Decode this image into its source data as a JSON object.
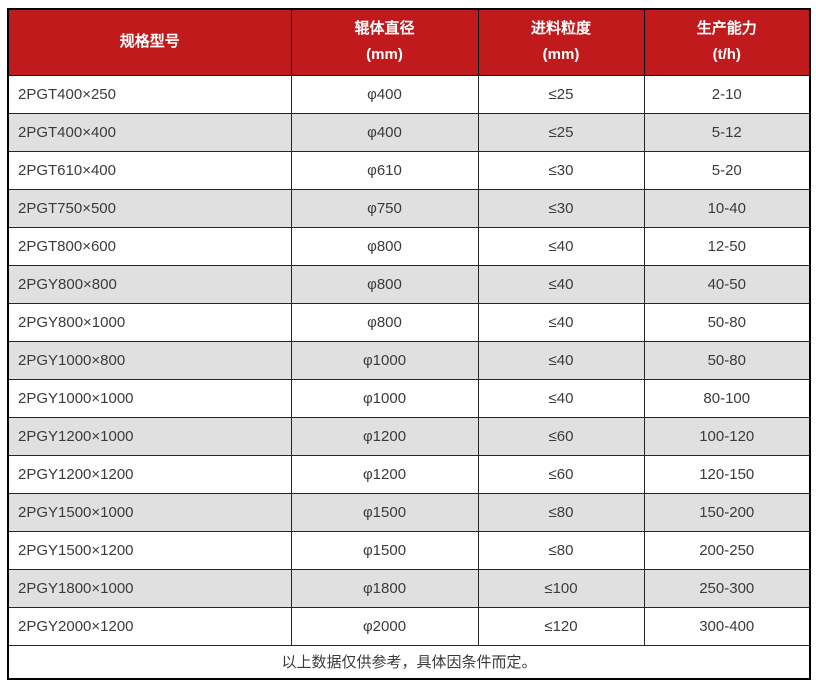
{
  "table": {
    "columns": [
      {
        "line1": "规格型号",
        "line2": ""
      },
      {
        "line1": "辊体直径",
        "line2": "(mm)"
      },
      {
        "line1": "进料粒度",
        "line2": "(mm)"
      },
      {
        "line1": "生产能力",
        "line2": "(t/h)"
      }
    ],
    "rows": [
      [
        "2PGT400×250",
        "φ400",
        "≤25",
        "2-10"
      ],
      [
        "2PGT400×400",
        "φ400",
        "≤25",
        "5-12"
      ],
      [
        "2PGT610×400",
        "φ610",
        "≤30",
        "5-20"
      ],
      [
        "2PGT750×500",
        "φ750",
        "≤30",
        "10-40"
      ],
      [
        "2PGT800×600",
        "φ800",
        "≤40",
        "12-50"
      ],
      [
        "2PGY800×800",
        "φ800",
        "≤40",
        "40-50"
      ],
      [
        "2PGY800×1000",
        "φ800",
        "≤40",
        "50-80"
      ],
      [
        "2PGY1000×800",
        "φ1000",
        "≤40",
        "50-80"
      ],
      [
        "2PGY1000×1000",
        "φ1000",
        "≤40",
        "80-100"
      ],
      [
        "2PGY1200×1000",
        "φ1200",
        "≤60",
        "100-120"
      ],
      [
        "2PGY1200×1200",
        "φ1200",
        "≤60",
        "120-150"
      ],
      [
        "2PGY1500×1000",
        "φ1500",
        "≤80",
        "150-200"
      ],
      [
        "2PGY1500×1200",
        "φ1500",
        "≤80",
        "200-250"
      ],
      [
        "2PGY1800×1000",
        "φ1800",
        "≤100",
        "250-300"
      ],
      [
        "2PGY2000×1200",
        "φ2000",
        "≤120",
        "300-400"
      ]
    ],
    "footnote": "以上数据仅供参考，具体因条件而定。",
    "colors": {
      "header_bg": "#c01a1d",
      "header_text": "#ffffff",
      "row_alt_bg": "#e0e0e0",
      "body_text": "#3b3b3b",
      "border": "#262626",
      "outer_border": "#000000"
    },
    "cell_names": [
      "spec-model-cell",
      "roller-diameter-cell",
      "feed-size-cell",
      "capacity-cell"
    ]
  }
}
